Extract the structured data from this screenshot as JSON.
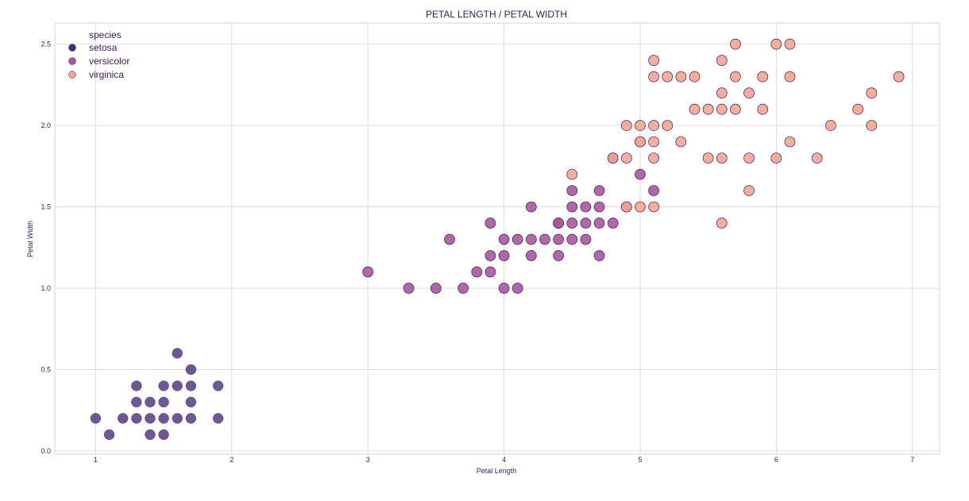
{
  "chart_data": {
    "type": "scatter",
    "title": "PETAL LENGTH / PETAL WIDTH",
    "xlabel": "Petal Length",
    "ylabel": "Petal Width",
    "xlim": [
      0.7,
      7.2
    ],
    "ylim": [
      -0.02,
      2.63
    ],
    "xticks": [
      1,
      2,
      3,
      4,
      5,
      6,
      7
    ],
    "yticks": [
      0.0,
      0.5,
      1.0,
      1.5,
      2.0,
      2.5
    ],
    "grid": true,
    "legend": {
      "title": "species",
      "position": "top-left"
    },
    "series": [
      {
        "name": "setosa",
        "color": "#4a2d7a",
        "points": [
          [
            1.0,
            0.2
          ],
          [
            1.1,
            0.1
          ],
          [
            1.2,
            0.2
          ],
          [
            1.3,
            0.2
          ],
          [
            1.3,
            0.3
          ],
          [
            1.3,
            0.4
          ],
          [
            1.4,
            0.1
          ],
          [
            1.4,
            0.2
          ],
          [
            1.4,
            0.3
          ],
          [
            1.5,
            0.1
          ],
          [
            1.5,
            0.2
          ],
          [
            1.5,
            0.3
          ],
          [
            1.5,
            0.4
          ],
          [
            1.6,
            0.2
          ],
          [
            1.6,
            0.4
          ],
          [
            1.6,
            0.6
          ],
          [
            1.7,
            0.2
          ],
          [
            1.7,
            0.3
          ],
          [
            1.7,
            0.4
          ],
          [
            1.7,
            0.5
          ],
          [
            1.9,
            0.2
          ],
          [
            1.9,
            0.4
          ]
        ]
      },
      {
        "name": "versicolor",
        "color": "#a8589c",
        "points": [
          [
            3.0,
            1.1
          ],
          [
            3.3,
            1.0
          ],
          [
            3.5,
            1.0
          ],
          [
            3.6,
            1.3
          ],
          [
            3.7,
            1.0
          ],
          [
            3.8,
            1.1
          ],
          [
            3.9,
            1.1
          ],
          [
            3.9,
            1.2
          ],
          [
            3.9,
            1.4
          ],
          [
            4.0,
            1.0
          ],
          [
            4.0,
            1.2
          ],
          [
            4.0,
            1.3
          ],
          [
            4.1,
            1.0
          ],
          [
            4.1,
            1.3
          ],
          [
            4.2,
            1.2
          ],
          [
            4.2,
            1.3
          ],
          [
            4.2,
            1.5
          ],
          [
            4.3,
            1.3
          ],
          [
            4.4,
            1.2
          ],
          [
            4.4,
            1.3
          ],
          [
            4.4,
            1.4
          ],
          [
            4.5,
            1.3
          ],
          [
            4.5,
            1.5
          ],
          [
            4.5,
            1.6
          ],
          [
            4.6,
            1.3
          ],
          [
            4.6,
            1.4
          ],
          [
            4.6,
            1.5
          ],
          [
            4.7,
            1.2
          ],
          [
            4.7,
            1.4
          ],
          [
            4.7,
            1.5
          ],
          [
            4.7,
            1.6
          ],
          [
            4.8,
            1.4
          ],
          [
            4.8,
            1.8
          ],
          [
            4.9,
            1.5
          ],
          [
            5.0,
            1.7
          ],
          [
            5.1,
            1.6
          ],
          [
            4.5,
            1.4
          ],
          [
            4.4,
            1.4
          ]
        ]
      },
      {
        "name": "virginica",
        "color": "#f4a58f",
        "points": [
          [
            4.5,
            1.7
          ],
          [
            4.8,
            1.8
          ],
          [
            4.9,
            1.8
          ],
          [
            4.9,
            2.0
          ],
          [
            5.0,
            1.5
          ],
          [
            5.0,
            1.9
          ],
          [
            5.0,
            2.0
          ],
          [
            5.1,
            1.5
          ],
          [
            5.1,
            1.8
          ],
          [
            5.1,
            1.9
          ],
          [
            5.1,
            2.0
          ],
          [
            5.1,
            2.3
          ],
          [
            5.1,
            2.4
          ],
          [
            5.2,
            2.0
          ],
          [
            5.2,
            2.3
          ],
          [
            5.3,
            1.9
          ],
          [
            5.3,
            2.3
          ],
          [
            5.4,
            2.1
          ],
          [
            5.4,
            2.3
          ],
          [
            5.5,
            1.8
          ],
          [
            5.5,
            2.1
          ],
          [
            5.6,
            1.4
          ],
          [
            5.6,
            1.8
          ],
          [
            5.6,
            2.1
          ],
          [
            5.6,
            2.2
          ],
          [
            5.6,
            2.4
          ],
          [
            5.7,
            2.1
          ],
          [
            5.7,
            2.3
          ],
          [
            5.7,
            2.5
          ],
          [
            5.8,
            1.6
          ],
          [
            5.8,
            1.8
          ],
          [
            5.8,
            2.2
          ],
          [
            5.9,
            2.1
          ],
          [
            5.9,
            2.3
          ],
          [
            6.0,
            1.8
          ],
          [
            6.0,
            2.5
          ],
          [
            6.1,
            1.9
          ],
          [
            6.1,
            2.3
          ],
          [
            6.1,
            2.5
          ],
          [
            6.3,
            1.8
          ],
          [
            6.4,
            2.0
          ],
          [
            6.6,
            2.1
          ],
          [
            6.7,
            2.0
          ],
          [
            6.7,
            2.2
          ],
          [
            6.9,
            2.3
          ],
          [
            4.9,
            1.5
          ],
          [
            5.0,
            1.9
          ]
        ]
      }
    ],
    "marker_edge_color": "#3b1a6a"
  }
}
